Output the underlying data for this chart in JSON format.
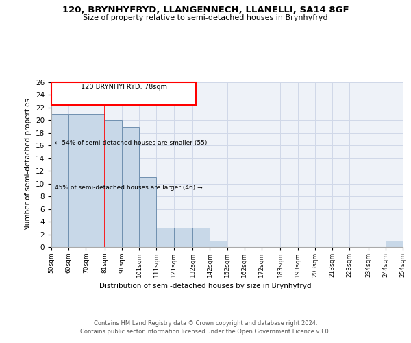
{
  "title": "120, BRYNHYFRYD, LLANGENNECH, LLANELLI, SA14 8GF",
  "subtitle": "Size of property relative to semi-detached houses in Brynhyfryd",
  "xlabel": "Distribution of semi-detached houses by size in Brynhyfryd",
  "ylabel": "Number of semi-detached properties",
  "footer_line1": "Contains HM Land Registry data © Crown copyright and database right 2024.",
  "footer_line2": "Contains public sector information licensed under the Open Government Licence v3.0.",
  "annotation_line1": "120 BRYNHYFRYD: 78sqm",
  "annotation_line2": "← 54% of semi-detached houses are smaller (55)",
  "annotation_line3": "45% of semi-detached houses are larger (46) →",
  "bar_edges": [
    50,
    60,
    70,
    81,
    91,
    101,
    111,
    121,
    132,
    142,
    152,
    162,
    172,
    183,
    193,
    203,
    213,
    223,
    234,
    244,
    254
  ],
  "bar_heights": [
    21,
    21,
    21,
    20,
    19,
    11,
    3,
    3,
    3,
    1,
    0,
    0,
    0,
    0,
    0,
    0,
    0,
    0,
    0,
    1,
    0
  ],
  "bin_labels": [
    "50sqm",
    "60sqm",
    "70sqm",
    "81sqm",
    "91sqm",
    "101sqm",
    "111sqm",
    "121sqm",
    "132sqm",
    "142sqm",
    "152sqm",
    "162sqm",
    "172sqm",
    "183sqm",
    "193sqm",
    "203sqm",
    "213sqm",
    "223sqm",
    "234sqm",
    "244sqm",
    "254sqm"
  ],
  "bar_color": "#c8d8e8",
  "bar_edge_color": "#7090b0",
  "grid_color": "#d0d8e8",
  "bg_color": "#eef2f8",
  "red_line_x": 81,
  "ylim": [
    0,
    26
  ],
  "yticks": [
    0,
    2,
    4,
    6,
    8,
    10,
    12,
    14,
    16,
    18,
    20,
    22,
    24,
    26
  ]
}
